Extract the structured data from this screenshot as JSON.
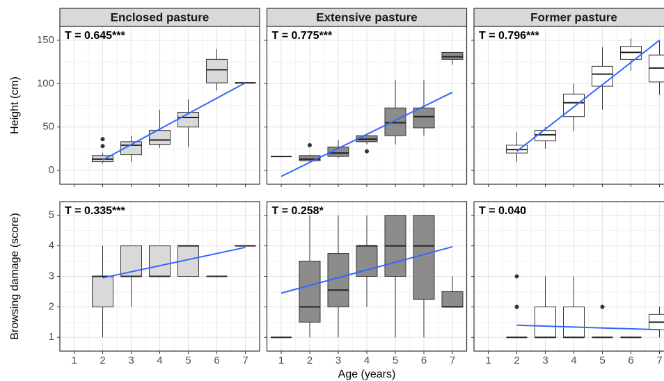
{
  "chart_data": [
    {
      "type": "box",
      "title": "Enclosed pasture",
      "annotation": "T = 0.645***",
      "ylabel": "Height (cm)",
      "color": "#d9d9d9",
      "xlim": [
        0.5,
        7.5
      ],
      "xticks": [
        1,
        2,
        3,
        4,
        5,
        6,
        7
      ],
      "ylim": [
        -16,
        166
      ],
      "yticks": [
        0,
        50,
        100,
        150
      ],
      "boxes": [
        {
          "x": 2,
          "whisker_low": 8,
          "q1": 10,
          "median": 13,
          "q3": 17,
          "whisker_high": 20,
          "outliers": [
            28,
            36
          ]
        },
        {
          "x": 3,
          "whisker_low": 10,
          "q1": 18,
          "median": 29,
          "q3": 33,
          "whisker_high": 40,
          "outliers": []
        },
        {
          "x": 4,
          "whisker_low": 26,
          "q1": 30,
          "median": 35,
          "q3": 46,
          "whisker_high": 70,
          "outliers": []
        },
        {
          "x": 5,
          "whisker_low": 27,
          "q1": 50,
          "median": 61,
          "q3": 67,
          "whisker_high": 82,
          "outliers": []
        },
        {
          "x": 6,
          "whisker_low": 92,
          "q1": 101,
          "median": 116,
          "q3": 128,
          "whisker_high": 140,
          "outliers": []
        },
        {
          "x": 7,
          "whisker_low": 101,
          "q1": 101,
          "median": 101,
          "q3": 101,
          "whisker_high": 101,
          "outliers": []
        }
      ],
      "trend": {
        "color": "#3366ff",
        "x": [
          2,
          7
        ],
        "y": [
          12,
          101
        ]
      }
    },
    {
      "type": "box",
      "title": "Extensive pasture",
      "annotation": "T = 0.775***",
      "color": "#8c8c8c",
      "xlim": [
        0.5,
        7.5
      ],
      "xticks": [
        1,
        2,
        3,
        4,
        5,
        6,
        7
      ],
      "ylim": [
        -16,
        166
      ],
      "yticks": [
        0,
        50,
        100,
        150
      ],
      "boxes": [
        {
          "x": 1,
          "whisker_low": 16,
          "q1": 16,
          "median": 16,
          "q3": 16,
          "whisker_high": 16,
          "outliers": []
        },
        {
          "x": 2,
          "whisker_low": 10,
          "q1": 11,
          "median": 13,
          "q3": 17,
          "whisker_high": 18,
          "outliers": [
            29
          ]
        },
        {
          "x": 3,
          "whisker_low": 14,
          "q1": 16,
          "median": 20,
          "q3": 27,
          "whisker_high": 35,
          "outliers": []
        },
        {
          "x": 4,
          "whisker_low": 30,
          "q1": 33,
          "median": 36,
          "q3": 40,
          "whisker_high": 40,
          "outliers": [
            22
          ]
        },
        {
          "x": 5,
          "whisker_low": 30,
          "q1": 40,
          "median": 55,
          "q3": 72,
          "whisker_high": 104,
          "outliers": []
        },
        {
          "x": 6,
          "whisker_low": 40,
          "q1": 49,
          "median": 62,
          "q3": 72,
          "whisker_high": 104,
          "outliers": []
        },
        {
          "x": 7,
          "whisker_low": 122,
          "q1": 128,
          "median": 131,
          "q3": 136,
          "whisker_high": 136,
          "outliers": []
        }
      ],
      "trend": {
        "color": "#3366ff",
        "x": [
          1,
          7
        ],
        "y": [
          -7,
          90
        ]
      }
    },
    {
      "type": "box",
      "title": "Former pasture",
      "annotation": "T = 0.796***",
      "color": "#ffffff",
      "xlim": [
        0.5,
        7.5
      ],
      "xticks": [
        1,
        2,
        3,
        4,
        5,
        6,
        7
      ],
      "ylim": [
        -16,
        166
      ],
      "yticks": [
        0,
        50,
        100,
        150
      ],
      "boxes": [
        {
          "x": 2,
          "whisker_low": 10,
          "q1": 20,
          "median": 24,
          "q3": 29,
          "whisker_high": 44,
          "outliers": []
        },
        {
          "x": 3,
          "whisker_low": 25,
          "q1": 34,
          "median": 41,
          "q3": 46,
          "whisker_high": 50,
          "outliers": []
        },
        {
          "x": 4,
          "whisker_low": 45,
          "q1": 62,
          "median": 78,
          "q3": 88,
          "whisker_high": 100,
          "outliers": []
        },
        {
          "x": 5,
          "whisker_low": 70,
          "q1": 97,
          "median": 111,
          "q3": 120,
          "whisker_high": 142,
          "outliers": []
        },
        {
          "x": 6,
          "whisker_low": 115,
          "q1": 128,
          "median": 136,
          "q3": 143,
          "whisker_high": 152,
          "outliers": []
        },
        {
          "x": 7,
          "whisker_low": 87,
          "q1": 102,
          "median": 118,
          "q3": 133,
          "whisker_high": 150,
          "outliers": []
        }
      ],
      "trend": {
        "color": "#3366ff",
        "x": [
          2,
          7
        ],
        "y": [
          22,
          150
        ]
      }
    },
    {
      "type": "box",
      "annotation": "T = 0.335***",
      "ylabel": "Browsing damage (score)",
      "color": "#d9d9d9",
      "xlim": [
        0.5,
        7.5
      ],
      "xticks": [
        1,
        2,
        3,
        4,
        5,
        6,
        7
      ],
      "ylim": [
        0.55,
        5.45
      ],
      "yticks": [
        1,
        2,
        3,
        4,
        5
      ],
      "boxes": [
        {
          "x": 2,
          "whisker_low": 1,
          "q1": 2,
          "median": 3,
          "q3": 3,
          "whisker_high": 4,
          "outliers": []
        },
        {
          "x": 3,
          "whisker_low": 2,
          "q1": 3,
          "median": 3,
          "q3": 4,
          "whisker_high": 4,
          "outliers": []
        },
        {
          "x": 4,
          "whisker_low": 3,
          "q1": 3,
          "median": 3,
          "q3": 4,
          "whisker_high": 4,
          "outliers": []
        },
        {
          "x": 5,
          "whisker_low": 3,
          "q1": 3,
          "median": 4,
          "q3": 4,
          "whisker_high": 4,
          "outliers": []
        },
        {
          "x": 6,
          "whisker_low": 3,
          "q1": 3,
          "median": 3,
          "q3": 3,
          "whisker_high": 3,
          "outliers": []
        },
        {
          "x": 7,
          "whisker_low": 4,
          "q1": 4,
          "median": 4,
          "q3": 4,
          "whisker_high": 4,
          "outliers": []
        }
      ],
      "trend": {
        "color": "#3366ff",
        "x": [
          2,
          7
        ],
        "y": [
          2.95,
          3.95
        ]
      }
    },
    {
      "type": "box",
      "annotation": "T = 0.258*",
      "xlabel": "Age (years)",
      "color": "#8c8c8c",
      "xlim": [
        0.5,
        7.5
      ],
      "xticks": [
        1,
        2,
        3,
        4,
        5,
        6,
        7
      ],
      "ylim": [
        0.55,
        5.45
      ],
      "yticks": [
        1,
        2,
        3,
        4,
        5
      ],
      "boxes": [
        {
          "x": 1,
          "whisker_low": 1,
          "q1": 1,
          "median": 1,
          "q3": 1,
          "whisker_high": 1,
          "outliers": []
        },
        {
          "x": 2,
          "whisker_low": 1,
          "q1": 1.5,
          "median": 2,
          "q3": 3.5,
          "whisker_high": 5,
          "outliers": []
        },
        {
          "x": 3,
          "whisker_low": 1,
          "q1": 2,
          "median": 2.55,
          "q3": 3.75,
          "whisker_high": 5,
          "outliers": []
        },
        {
          "x": 4,
          "whisker_low": 2,
          "q1": 3,
          "median": 4,
          "q3": 4,
          "whisker_high": 5,
          "outliers": []
        },
        {
          "x": 5,
          "whisker_low": 1,
          "q1": 3,
          "median": 4,
          "q3": 5,
          "whisker_high": 5,
          "outliers": []
        },
        {
          "x": 6,
          "whisker_low": 1,
          "q1": 2.25,
          "median": 4,
          "q3": 5,
          "whisker_high": 5,
          "outliers": []
        },
        {
          "x": 7,
          "whisker_low": 2,
          "q1": 2,
          "median": 2,
          "q3": 2.5,
          "whisker_high": 3,
          "outliers": []
        }
      ],
      "trend": {
        "color": "#3366ff",
        "x": [
          1,
          7
        ],
        "y": [
          2.45,
          3.97
        ]
      }
    },
    {
      "type": "box",
      "annotation": "T = 0.040",
      "color": "#ffffff",
      "xlim": [
        0.5,
        7.5
      ],
      "xticks": [
        1,
        2,
        3,
        4,
        5,
        6,
        7
      ],
      "ylim": [
        0.55,
        5.45
      ],
      "yticks": [
        1,
        2,
        3,
        4,
        5
      ],
      "boxes": [
        {
          "x": 2,
          "whisker_low": 1,
          "q1": 1,
          "median": 1,
          "q3": 1,
          "whisker_high": 1,
          "outliers": [
            2,
            3
          ]
        },
        {
          "x": 3,
          "whisker_low": 1,
          "q1": 1,
          "median": 1,
          "q3": 2,
          "whisker_high": 3,
          "outliers": []
        },
        {
          "x": 4,
          "whisker_low": 1,
          "q1": 1,
          "median": 1,
          "q3": 2,
          "whisker_high": 3,
          "outliers": []
        },
        {
          "x": 5,
          "whisker_low": 1,
          "q1": 1,
          "median": 1,
          "q3": 1,
          "whisker_high": 1,
          "outliers": [
            2
          ]
        },
        {
          "x": 6,
          "whisker_low": 1,
          "q1": 1,
          "median": 1,
          "q3": 1,
          "whisker_high": 1,
          "outliers": []
        },
        {
          "x": 7,
          "whisker_low": 1,
          "q1": 1.25,
          "median": 1.5,
          "q3": 1.75,
          "whisker_high": 2,
          "outliers": []
        }
      ],
      "trend": {
        "color": "#3366ff",
        "x": [
          2,
          7
        ],
        "y": [
          1.4,
          1.25
        ]
      }
    }
  ]
}
